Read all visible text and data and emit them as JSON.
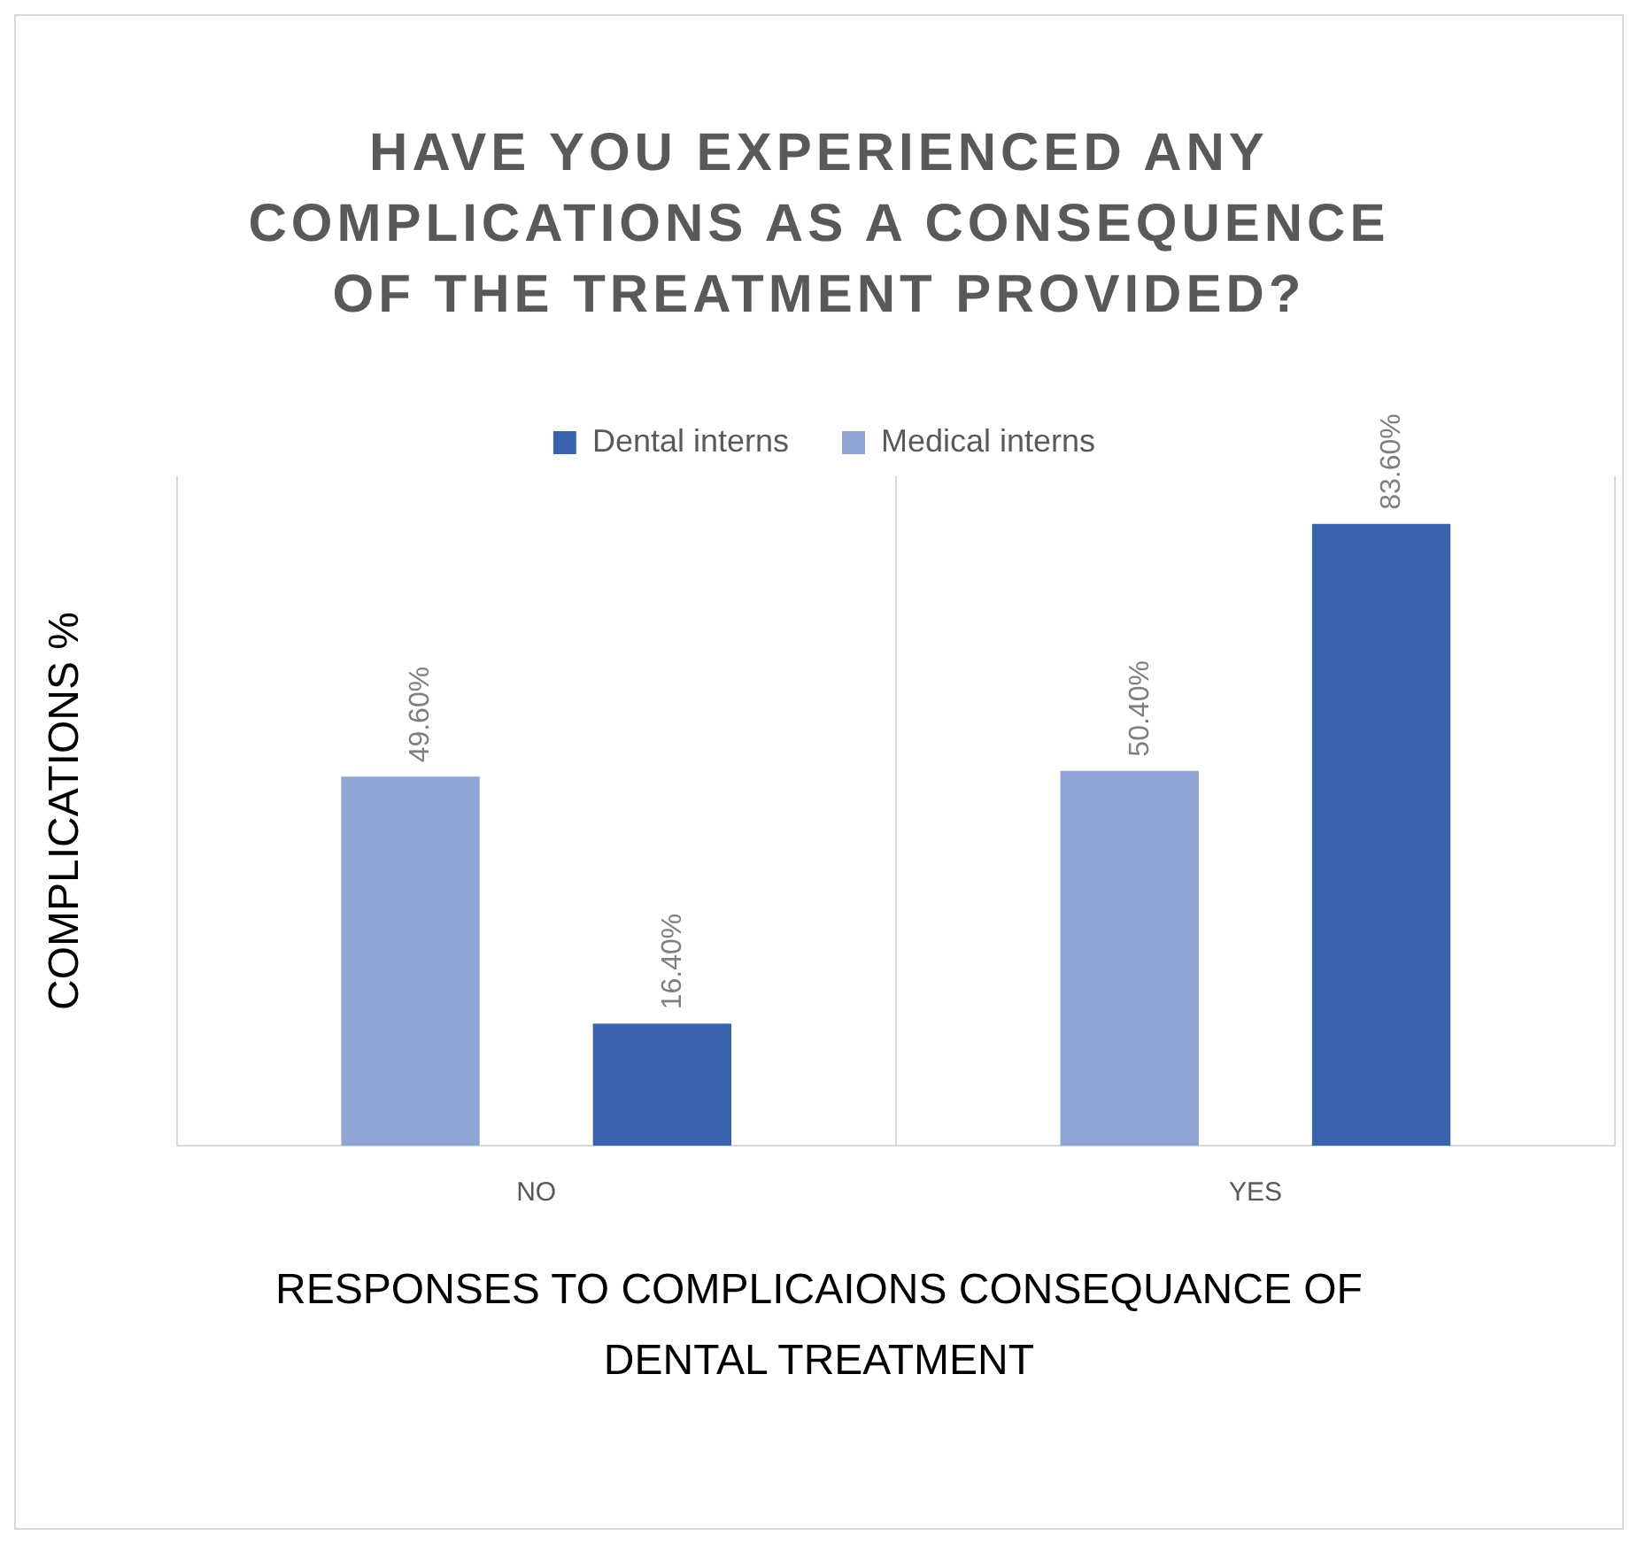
{
  "chart_data": {
    "type": "bar",
    "title": "HAVE YOU EXPERIENCED ANY COMPLICATIONS AS A CONSEQUENCE OF THE TREATMENT PROVIDED?",
    "xlabel": "RESPONSES TO COMPLICAIONS CONSEQUANCE OF DENTAL TREATMENT",
    "ylabel": "COMPLICATIONS %",
    "categories": [
      "NO",
      "YES"
    ],
    "series": [
      {
        "name": "Medical interns",
        "color": "#8fa5d6",
        "values": [
          49.6,
          50.4
        ],
        "value_labels": [
          "49.60%",
          "50.40%"
        ]
      },
      {
        "name": "Dental interns",
        "color": "#3a62ad",
        "values": [
          16.4,
          83.6
        ],
        "value_labels": [
          "16.40%",
          "83.60%"
        ]
      }
    ],
    "tick_labels": "x",
    "grid": "x",
    "legend": "top"
  }
}
